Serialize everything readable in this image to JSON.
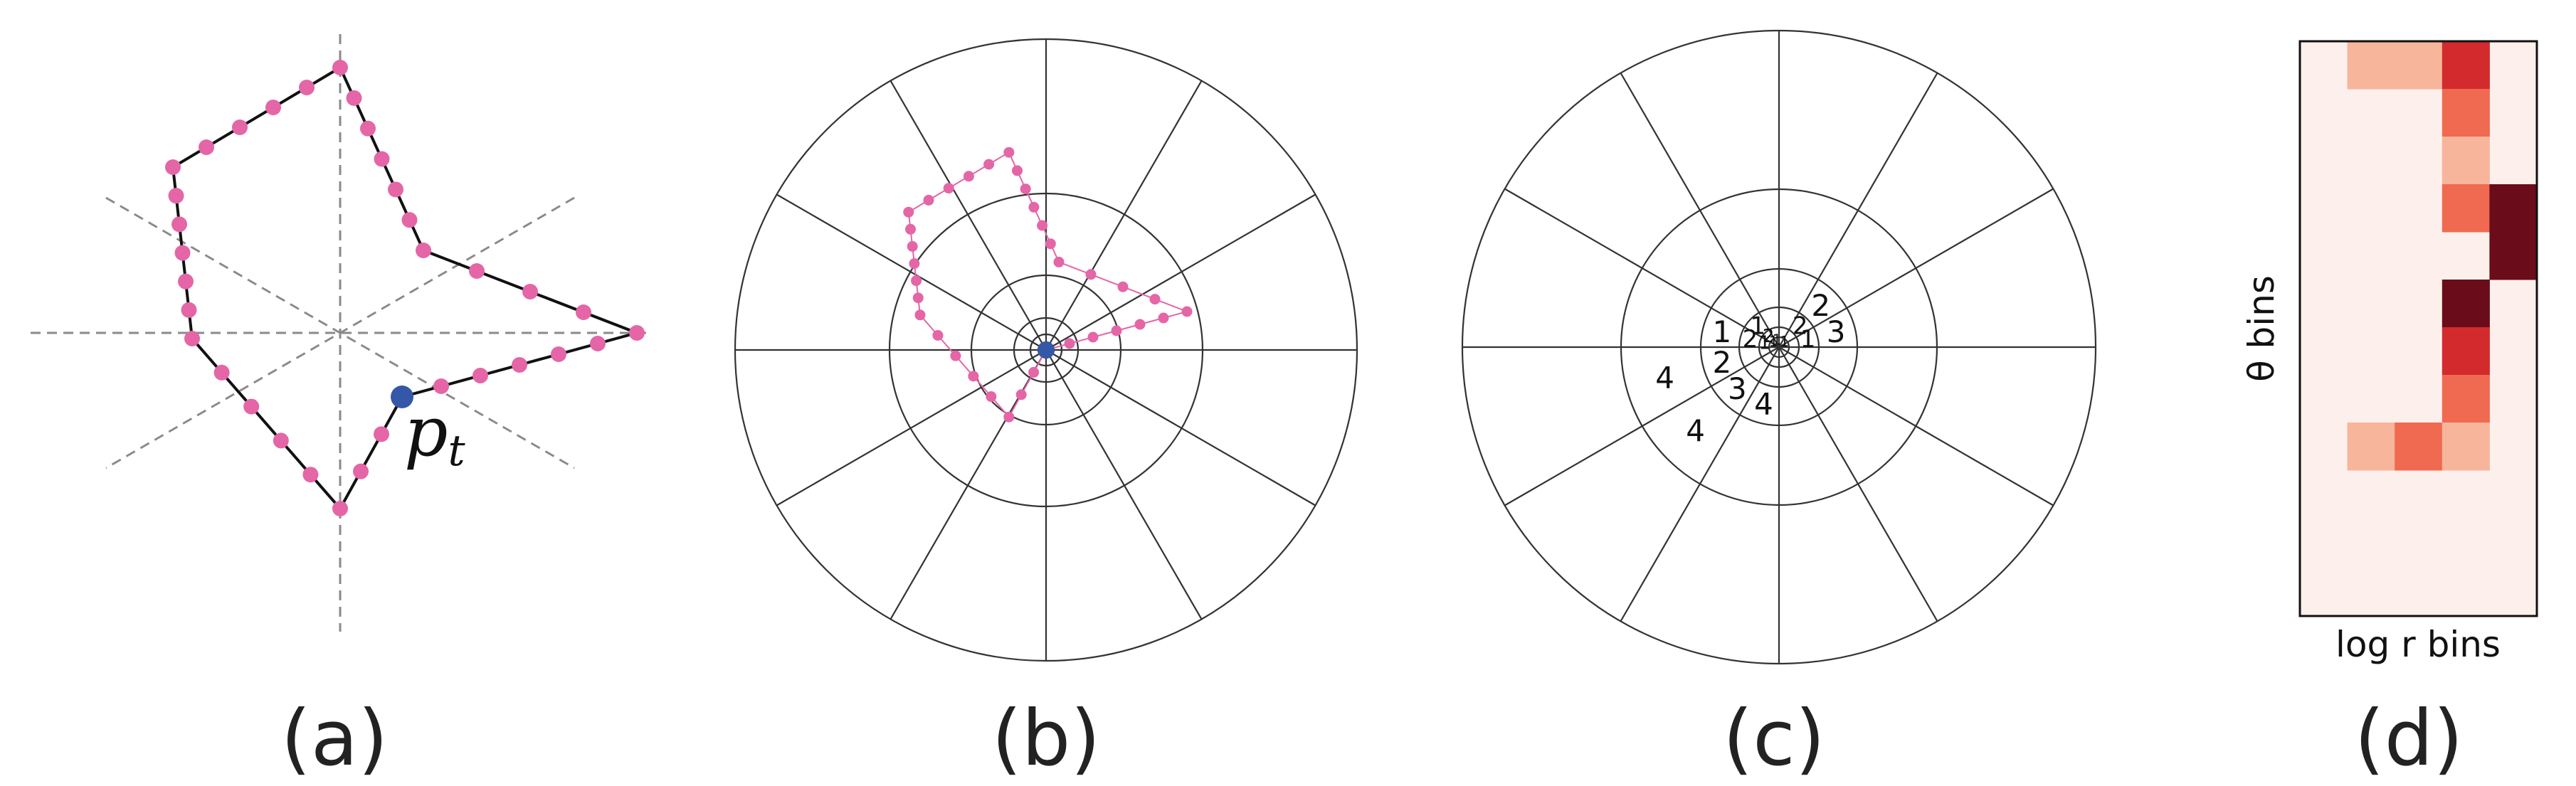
{
  "panels": {
    "a": {
      "caption": "(a)",
      "point_label_base": "p",
      "point_label_sub": "t"
    },
    "b": {
      "caption": "(b)"
    },
    "c": {
      "caption": "(c)"
    },
    "d": {
      "caption": "(d)",
      "xlabel": "log r bins",
      "ylabel": "θ bins"
    }
  },
  "colors": {
    "sample_point": "#e466a6",
    "reference_point": "#3557a8",
    "contour": "#111111",
    "guide_dashes": "#8a8a8a",
    "grid": "#333333",
    "heat_scale": [
      "#fdf0ec",
      "#f7b59c",
      "#ef6a50",
      "#d32a2e",
      "#6a0c19"
    ]
  },
  "histogram_counts": [
    {
      "ring": 0,
      "sector": 1,
      "count": "1"
    },
    {
      "ring": 0,
      "sector": 3,
      "count": "1"
    },
    {
      "ring": 0,
      "sector": 4,
      "count": "1"
    },
    {
      "ring": 1,
      "sector": 5,
      "count": "1"
    },
    {
      "ring": 1,
      "sector": 4,
      "count": "2"
    },
    {
      "ring": 2,
      "sector": 0,
      "count": "1"
    },
    {
      "ring": 2,
      "sector": 1,
      "count": "2"
    },
    {
      "ring": 2,
      "sector": 4,
      "count": "1"
    },
    {
      "ring": 2,
      "sector": 5,
      "count": "2"
    },
    {
      "ring": 3,
      "sector": 0,
      "count": "3"
    },
    {
      "ring": 3,
      "sector": 1,
      "count": "2"
    },
    {
      "ring": 3,
      "sector": 5,
      "count": "1"
    },
    {
      "ring": 3,
      "sector": 6,
      "count": "2"
    },
    {
      "ring": 3,
      "sector": 7,
      "count": "3"
    },
    {
      "ring": 3,
      "sector": 8,
      "count": "4"
    },
    {
      "ring": 4,
      "sector": 7,
      "count": "4"
    },
    {
      "ring": 4,
      "sector": 6,
      "count": "4"
    }
  ],
  "chart_data": {
    "type": "heatmap",
    "xlabel": "log r bins",
    "ylabel": "θ bins",
    "n_cols": 5,
    "n_rows": 12,
    "values": [
      [
        0,
        1,
        1,
        3,
        0
      ],
      [
        0,
        0,
        0,
        2,
        0
      ],
      [
        0,
        0,
        0,
        1,
        0
      ],
      [
        0,
        0,
        0,
        2,
        4
      ],
      [
        0,
        0,
        0,
        0,
        4
      ],
      [
        0,
        0,
        0,
        4,
        0
      ],
      [
        0,
        0,
        0,
        3,
        0
      ],
      [
        0,
        0,
        0,
        2,
        0
      ],
      [
        0,
        1,
        2,
        1,
        0
      ],
      [
        0,
        0,
        0,
        0,
        0
      ],
      [
        0,
        0,
        0,
        0,
        0
      ],
      [
        0,
        0,
        0,
        0,
        0
      ]
    ]
  }
}
